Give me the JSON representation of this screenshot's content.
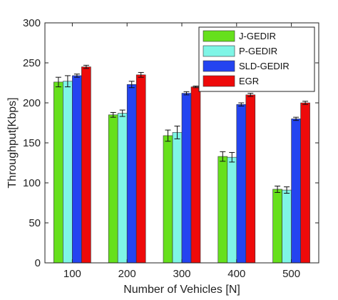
{
  "chart_data": {
    "type": "bar",
    "categories": [
      "100",
      "200",
      "300",
      "400",
      "500"
    ],
    "xlabel": "Number of Vehicles [N]",
    "ylabel": "Throughput[Kbps]",
    "ylim": [
      0,
      300
    ],
    "yticks": [
      "0",
      "50",
      "100",
      "150",
      "200",
      "250",
      "300"
    ],
    "legend_position": "top-right",
    "grid": false,
    "series": [
      {
        "name": "J-GEDIR",
        "color": "#66e01c",
        "values": [
          226,
          185,
          159,
          133,
          92
        ],
        "errors": [
          6,
          3,
          7,
          6,
          4
        ]
      },
      {
        "name": "P-GEDIR",
        "color": "#7ff5e6",
        "values": [
          227,
          187,
          163,
          132,
          91
        ],
        "errors": [
          7,
          4,
          8,
          6,
          4
        ]
      },
      {
        "name": "SLD-GEDIR",
        "color": "#2444f0",
        "values": [
          234,
          223,
          212,
          198,
          180
        ],
        "errors": [
          2,
          4,
          2,
          2,
          2
        ]
      },
      {
        "name": "EGR",
        "color": "#ee0a0a",
        "values": [
          245,
          235,
          220,
          210,
          200
        ],
        "errors": [
          2,
          3,
          1,
          2,
          2
        ]
      }
    ]
  }
}
